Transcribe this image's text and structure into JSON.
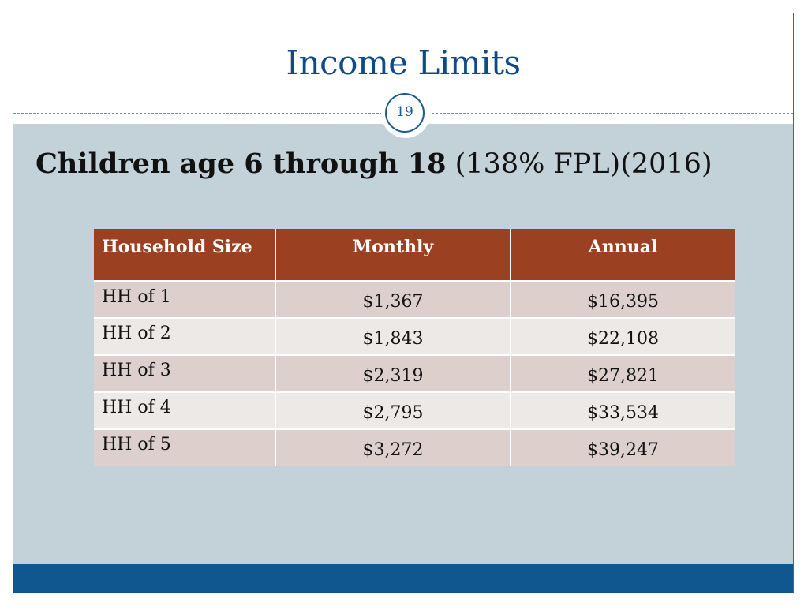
{
  "slide": {
    "title": "Income Limits",
    "page_number": "19",
    "subtitle_bold": "Children age 6 through 18",
    "subtitle_normal": " (138% FPL)(2016)"
  },
  "table": {
    "headers": [
      "Household Size",
      "Monthly",
      "Annual"
    ],
    "rows": [
      {
        "size": "HH of 1",
        "monthly": "$1,367",
        "annual": "$16,395"
      },
      {
        "size": "HH of 2",
        "monthly": "$1,843",
        "annual": "$22,108"
      },
      {
        "size": "HH of 3",
        "monthly": "$2,319",
        "annual": "$27,821"
      },
      {
        "size": "HH of 4",
        "monthly": "$2,795",
        "annual": "$33,534"
      },
      {
        "size": "HH of 5",
        "monthly": "$3,272",
        "annual": "$39,247"
      }
    ]
  },
  "colors": {
    "title": "#0f4a86",
    "header_bg": "#9b4122",
    "row_odd": "#dccfcc",
    "row_even": "#ede9e7",
    "content_bg": "#c3d1d8",
    "footer": "#10578f"
  }
}
